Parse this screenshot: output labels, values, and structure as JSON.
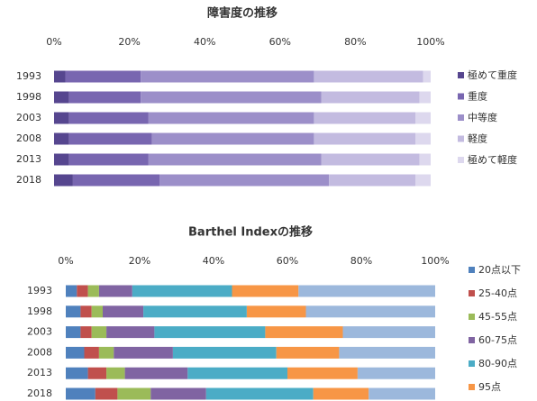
{
  "chart_data": [
    {
      "type": "bar",
      "orientation": "horizontal",
      "stacked": true,
      "title": "障害度の推移",
      "categories": [
        "1993",
        "1998",
        "2003",
        "2008",
        "2013",
        "2018"
      ],
      "series": [
        {
          "name": "極めて重度",
          "color": "#56468f",
          "values": [
            3,
            4,
            4,
            4,
            4,
            5
          ]
        },
        {
          "name": "重度",
          "color": "#7866b0",
          "values": [
            20,
            19,
            21,
            22,
            21,
            23
          ]
        },
        {
          "name": "中等度",
          "color": "#9c8fc9",
          "values": [
            46,
            48,
            44,
            43,
            46,
            45
          ]
        },
        {
          "name": "軽度",
          "color": "#c3bbe0",
          "values": [
            29,
            26,
            27,
            27,
            26,
            23
          ]
        },
        {
          "name": "極めて軽度",
          "color": "#ddd8ee",
          "values": [
            2,
            3,
            4,
            4,
            3,
            4
          ]
        }
      ],
      "xlim": [
        0,
        100
      ],
      "xticks": [
        {
          "value": 0,
          "label": "0%"
        },
        {
          "value": 20,
          "label": "20%"
        },
        {
          "value": 40,
          "label": "40%"
        },
        {
          "value": 60,
          "label": "60%"
        },
        {
          "value": 80,
          "label": "80%"
        },
        {
          "value": 100,
          "label": "100%"
        }
      ],
      "grid": false,
      "legend": "right"
    },
    {
      "type": "bar",
      "orientation": "horizontal",
      "stacked": true,
      "title": "Barthel Indexの推移",
      "categories": [
        "1993",
        "1998",
        "2003",
        "2008",
        "2013",
        "2018"
      ],
      "series": [
        {
          "name": "20点以下",
          "color": "#4f81bd",
          "values": [
            3,
            4,
            4,
            5,
            6,
            8
          ]
        },
        {
          "name": "25-40点",
          "color": "#c0504d",
          "values": [
            3,
            3,
            3,
            4,
            5,
            6
          ]
        },
        {
          "name": "45-55点",
          "color": "#9bbb59",
          "values": [
            3,
            3,
            4,
            4,
            5,
            9
          ]
        },
        {
          "name": "60-75点",
          "color": "#8064a2",
          "values": [
            9,
            11,
            13,
            16,
            17,
            15
          ]
        },
        {
          "name": "80-90点",
          "color": "#4bacc6",
          "values": [
            27,
            28,
            30,
            28,
            27,
            29
          ]
        },
        {
          "name": "95点",
          "color": "#f79646",
          "values": [
            18,
            16,
            21,
            17,
            19,
            15
          ]
        },
        {
          "color": "#9cb8dc",
          "values": [
            37,
            35,
            25,
            26,
            21,
            18
          ]
        }
      ],
      "xlim": [
        0,
        100
      ],
      "xticks": [
        {
          "value": 0,
          "label": "0%"
        },
        {
          "value": 20,
          "label": "20%"
        },
        {
          "value": 40,
          "label": "40%"
        },
        {
          "value": 60,
          "label": "60%"
        },
        {
          "value": 80,
          "label": "80%"
        },
        {
          "value": 100,
          "label": "100%"
        }
      ],
      "grid": false,
      "legend": "right"
    }
  ]
}
